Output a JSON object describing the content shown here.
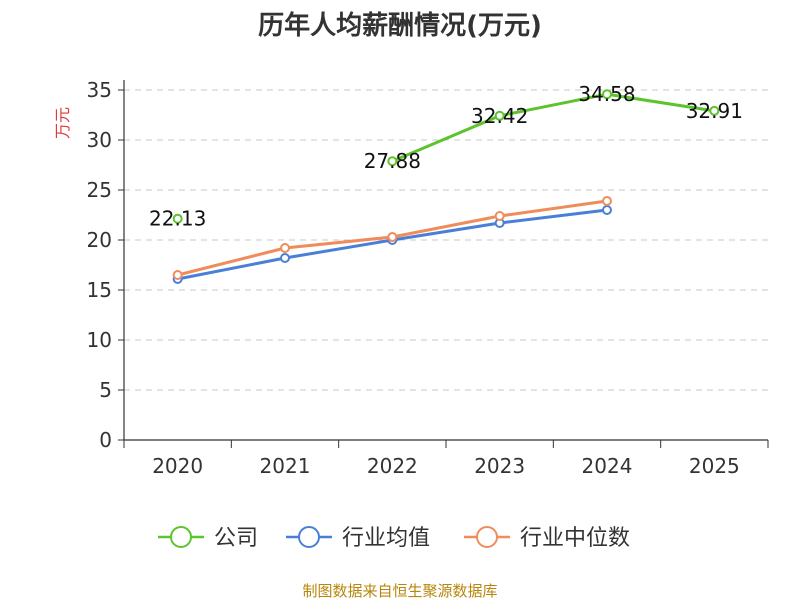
{
  "chart_data": {
    "type": "line",
    "title": "历年人均薪酬情况(万元)",
    "ylabel": "万元",
    "xlabel": "",
    "categories": [
      "2020",
      "2021",
      "2022",
      "2023",
      "2024",
      "2025"
    ],
    "ylim": [
      0,
      35
    ],
    "yticks": [
      0,
      5,
      10,
      15,
      20,
      25,
      30,
      35
    ],
    "grid": true,
    "legend_position": "bottom",
    "series": [
      {
        "name": "公司",
        "color": "#5cc42c",
        "values": [
          22.13,
          null,
          27.88,
          32.42,
          34.58,
          32.91
        ],
        "labels": true
      },
      {
        "name": "行业均值",
        "color": "#4a7fd8",
        "values": [
          16.1,
          18.2,
          20.0,
          21.7,
          23.0,
          null
        ],
        "labels": false
      },
      {
        "name": "行业中位数",
        "color": "#f08c5a",
        "values": [
          16.5,
          19.2,
          20.3,
          22.4,
          23.9,
          null
        ],
        "labels": false
      }
    ]
  },
  "source": "制图数据来自恒生聚源数据库"
}
